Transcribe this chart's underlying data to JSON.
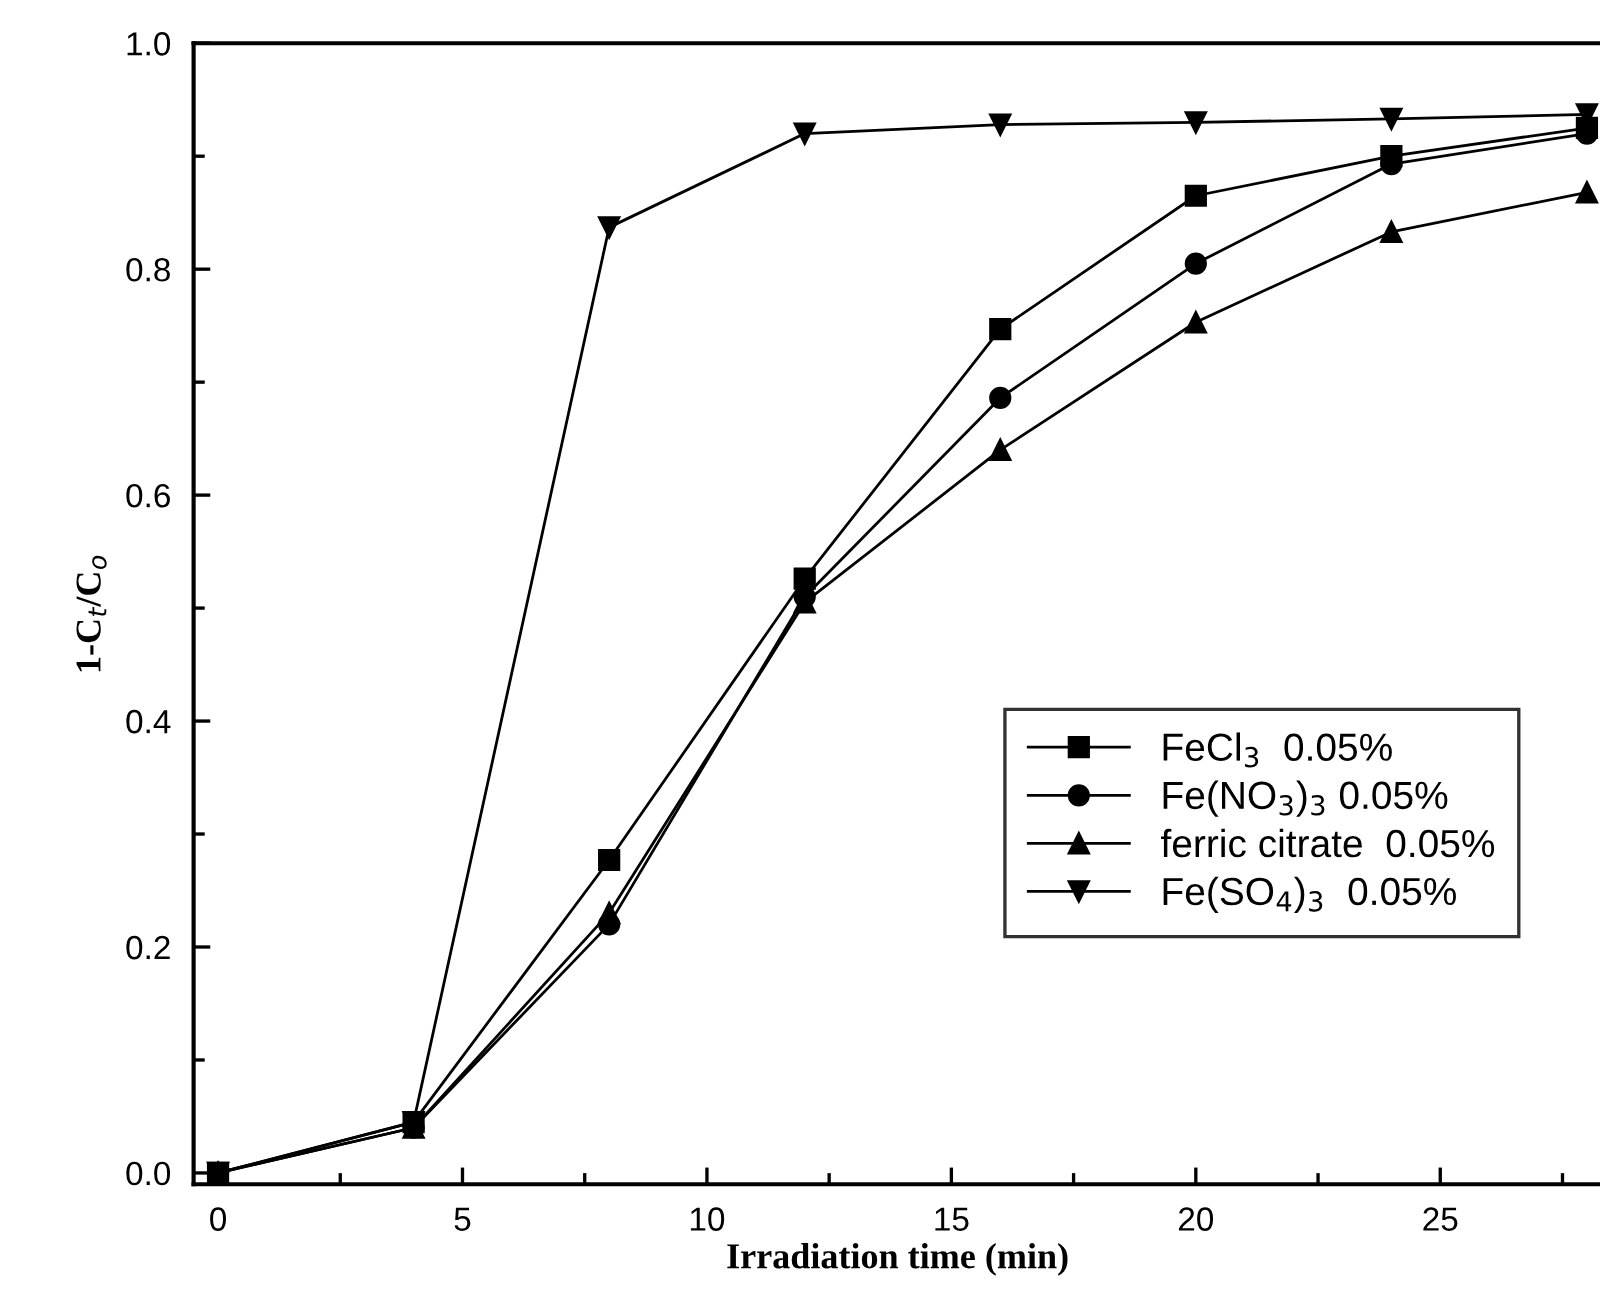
{
  "chart_data": {
    "type": "line",
    "xlabel": "Irradiation time (min)",
    "ylabel": "1-C$_{t}$/C$_{o}$",
    "x": [
      0,
      4,
      8,
      12,
      16,
      20,
      24,
      28
    ],
    "series": [
      {
        "name": "FeCl$_{3}$  0.05%",
        "color": "#000000",
        "marker": "square",
        "values": [
          0.0,
          0.045,
          0.277,
          0.526,
          0.747,
          0.865,
          0.9,
          0.925
        ]
      },
      {
        "name": "Fe(NO$_{3}$)$_{3}$ 0.05%",
        "color": "#000000",
        "marker": "circle",
        "values": [
          0.0,
          0.04,
          0.22,
          0.51,
          0.686,
          0.805,
          0.893,
          0.92
        ]
      },
      {
        "name": "ferric citrate  0.05%",
        "color": "#000000",
        "marker": "triangle",
        "values": [
          0.0,
          0.04,
          0.23,
          0.505,
          0.64,
          0.753,
          0.833,
          0.868
        ]
      },
      {
        "name": "Fe(SO$_{4}$)$_{3}$  0.05%",
        "color": "#000000",
        "marker": "triangle_down",
        "values": [
          0.0,
          0.045,
          0.837,
          0.92,
          0.928,
          0.93,
          0.933,
          0.937
        ]
      }
    ],
    "xlim": [
      -0.5,
      28.3
    ],
    "ylim": [
      -0.01,
      1.0
    ],
    "xticks": [
      0,
      {
        "value": 2.5,
        "label": null
      },
      5,
      {
        "value": 7.5,
        "label": null
      },
      10,
      {
        "value": 12.5,
        "label": null
      },
      15,
      {
        "value": 17.5,
        "label": null
      },
      20,
      {
        "value": 22.5,
        "label": null
      },
      25,
      {
        "value": 27.5,
        "label": null
      }
    ],
    "yticks": [
      {
        "value": 0,
        "label": "0.0"
      },
      {
        "value": 0.1,
        "label": null
      },
      0.2,
      {
        "value": 0.3,
        "label": null
      },
      0.4,
      {
        "value": 0.5,
        "label": null
      },
      0.6,
      {
        "value": 0.7,
        "label": null
      },
      0.8,
      {
        "value": 0.9,
        "label": null
      },
      {
        "value": 1,
        "label": "1.0"
      }
    ],
    "legend": "lower right",
    "grid": false,
    "line_style": "solid"
  }
}
